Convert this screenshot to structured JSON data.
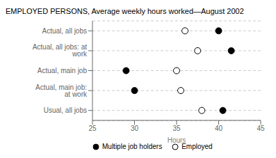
{
  "chart_data": {
    "type": "scatter",
    "title": "EMPLOYED PERSONS, Average weekly hours worked—August 2002",
    "orientation": "horizontal",
    "categories": [
      "Actual, all jobs",
      "Actual, all jobs: at work",
      "Actual, main job",
      "Actual, main job: at work",
      "Usual, all jobs"
    ],
    "series": [
      {
        "name": "Multiple job holders",
        "color": "#000000",
        "values": [
          40.0,
          41.5,
          29.0,
          30.0,
          40.5
        ]
      },
      {
        "name": "Employed",
        "color": "#ffffff",
        "values": [
          36.0,
          37.5,
          35.0,
          35.5,
          38.0
        ]
      }
    ],
    "xlim": [
      25,
      45
    ],
    "xticks": [
      25,
      30,
      35,
      40,
      45
    ],
    "xlabel": "Hours",
    "grid": true,
    "legend": "lower left"
  }
}
